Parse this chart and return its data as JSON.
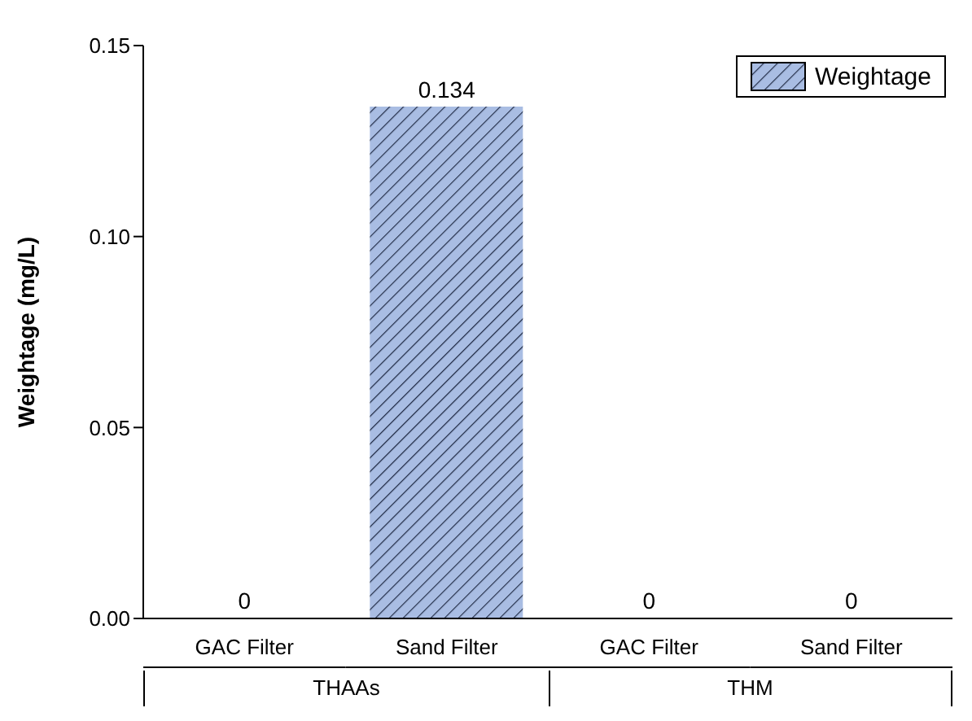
{
  "chart_data": {
    "type": "bar",
    "ylabel": "Weightage (mg/L)",
    "categories": [
      "GAC Filter",
      "Sand Filter",
      "GAC Filter",
      "Sand Filter"
    ],
    "series": [
      {
        "name": "Weightage",
        "color": "#a9bde3",
        "values": [
          0,
          0.134,
          0,
          0
        ]
      }
    ],
    "ylim": [
      0,
      0.15
    ],
    "yticks": [
      {
        "value": 0,
        "label": "0.00"
      },
      {
        "value": 0.05,
        "label": "0.05"
      },
      {
        "value": 0.1,
        "label": "0.10"
      },
      {
        "value": 0.15,
        "label": "0.15"
      }
    ],
    "annotations": [
      "THAAs",
      "THM"
    ],
    "data_labels": true,
    "legend": "top right",
    "grid": false
  }
}
